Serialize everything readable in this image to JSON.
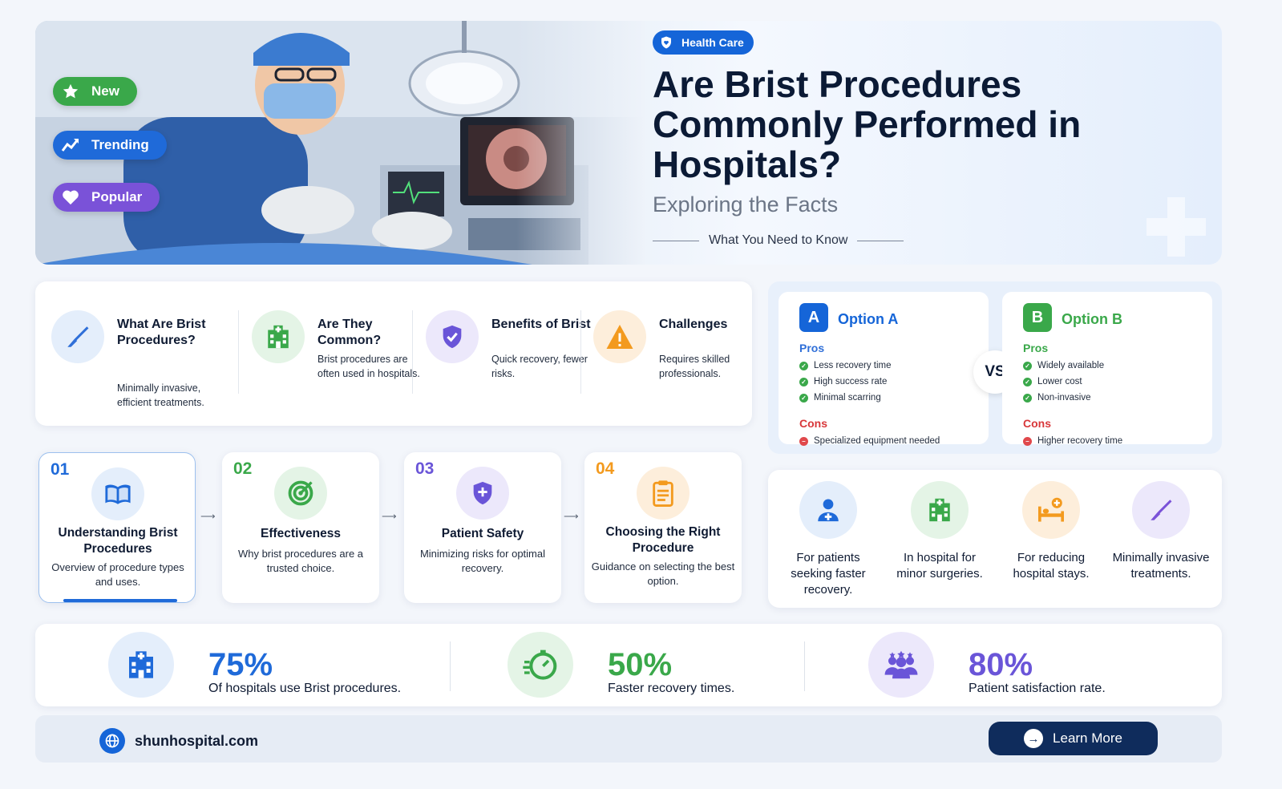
{
  "hero": {
    "tags": [
      {
        "label": "New",
        "color": "#3aa84a"
      },
      {
        "label": "Trending",
        "color": "#1f6ad9"
      },
      {
        "label": "Popular",
        "color": "#7a52d8"
      }
    ],
    "category": "Health Care",
    "title": "Are Brist Procedures Commonly Performed in Hospitals?",
    "subtitle": "Exploring the Facts",
    "kicker": "What You Need to Know"
  },
  "questions": [
    {
      "title": "What Are Brist Procedures?",
      "desc": "Minimally invasive, efficient treatments.",
      "icon": "scalpel-icon",
      "color": "#2f6fd8"
    },
    {
      "title": "Are They Common?",
      "desc": "Brist procedures are often used in hospitals.",
      "icon": "hospital-icon",
      "color": "#3aa84a"
    },
    {
      "title": "Benefits of Brist",
      "desc": "Quick recovery, fewer risks.",
      "icon": "shield-check-icon",
      "color": "#6a55d8"
    },
    {
      "title": "Challenges",
      "desc": "Requires skilled professionals.",
      "icon": "warning-icon",
      "color": "#f39a1e"
    }
  ],
  "compare": {
    "vs": "VS",
    "option_a": {
      "badge": "A",
      "title": "Option A",
      "pros_label": "Pros",
      "cons_label": "Cons",
      "pros": [
        "Less recovery time",
        "High success rate",
        "Minimal scarring"
      ],
      "cons": [
        "Specialized equipment needed"
      ],
      "color": "#1565d8"
    },
    "option_b": {
      "badge": "B",
      "title": "Option B",
      "pros_label": "Pros",
      "cons_label": "Cons",
      "pros": [
        "Widely available",
        "Lower cost",
        "Non-invasive"
      ],
      "cons": [
        "Higher recovery time"
      ],
      "color": "#3aa84a"
    }
  },
  "steps": [
    {
      "num": "01",
      "title": "Understanding Brist Procedures",
      "desc": "Overview of procedure types and uses.",
      "icon": "book-icon",
      "color": "#1f6ad9"
    },
    {
      "num": "02",
      "title": "Effectiveness",
      "desc": "Why brist procedures are a trusted choice.",
      "icon": "target-icon",
      "color": "#3aa84a"
    },
    {
      "num": "03",
      "title": "Patient Safety",
      "desc": "Minimizing risks for optimal recovery.",
      "icon": "shield-plus-icon",
      "color": "#6a55d8"
    },
    {
      "num": "04",
      "title": "Choosing the Right Procedure",
      "desc": "Guidance on selecting the best option.",
      "icon": "clipboard-icon",
      "color": "#f39a1e"
    }
  ],
  "audience": [
    {
      "text": "For patients seeking faster recovery.",
      "icon": "patient-icon",
      "color": "#1f6ad9"
    },
    {
      "text": "In hospital for minor surgeries.",
      "icon": "hospital-icon",
      "color": "#3aa84a"
    },
    {
      "text": "For reducing hospital stays.",
      "icon": "hospital-bed-icon",
      "color": "#f39a1e"
    },
    {
      "text": "Minimally invasive treatments.",
      "icon": "scalpel-icon",
      "color": "#7a52d8"
    }
  ],
  "stats": [
    {
      "value": "75%",
      "label": "Of hospitals use Brist procedures.",
      "icon": "hospital-icon",
      "color": "#1f6ad9"
    },
    {
      "value": "50%",
      "label": "Faster recovery times.",
      "icon": "stopwatch-icon",
      "color": "#3aa84a"
    },
    {
      "value": "80%",
      "label": "Patient satisfaction rate.",
      "icon": "people-icon",
      "color": "#6a55d8"
    }
  ],
  "footer": {
    "site": "shunhospital.com",
    "cta": "Learn More"
  }
}
